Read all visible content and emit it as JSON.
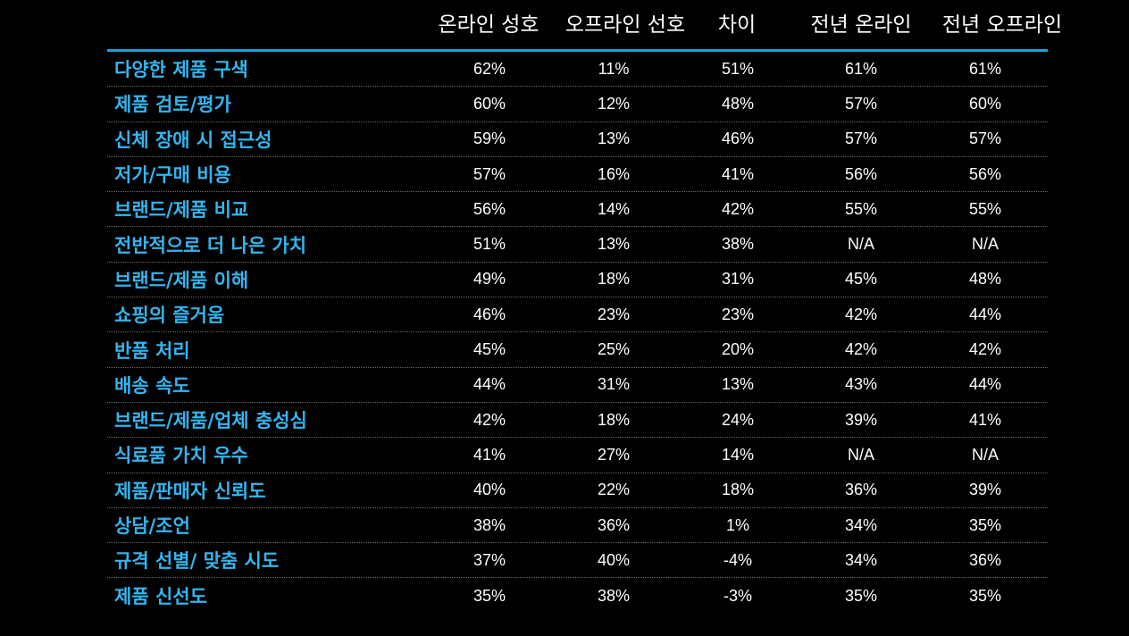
{
  "colors": {
    "background": "#000000",
    "accent_line": "#1ea3e0",
    "label_text": "#33b5ee",
    "value_text": "#ffffff",
    "header_text": "#ffffff"
  },
  "header": {
    "online_pref": "온라인 성호",
    "offline_pref": "오프라인 선호",
    "diff": "차이",
    "prev_online": "전년 온라인",
    "prev_offline": "전년 오프라인"
  },
  "rows": [
    {
      "label": "다양한 제품 구색",
      "online": "62%",
      "offline": "11%",
      "diff": "51%",
      "prev_online": "61%",
      "prev_offline": "61%"
    },
    {
      "label": "제품 검토/평가",
      "online": "60%",
      "offline": "12%",
      "diff": "48%",
      "prev_online": "57%",
      "prev_offline": "60%"
    },
    {
      "label": "신체 장애 시 접근성",
      "online": "59%",
      "offline": "13%",
      "diff": "46%",
      "prev_online": "57%",
      "prev_offline": "57%"
    },
    {
      "label": "저가/구매 비용",
      "online": "57%",
      "offline": "16%",
      "diff": "41%",
      "prev_online": "56%",
      "prev_offline": "56%"
    },
    {
      "label": "브랜드/제품 비교",
      "online": "56%",
      "offline": "14%",
      "diff": "42%",
      "prev_online": "55%",
      "prev_offline": "55%"
    },
    {
      "label": "전반적으로 더 나은 가치",
      "online": "51%",
      "offline": "13%",
      "diff": "38%",
      "prev_online": "N/A",
      "prev_offline": "N/A"
    },
    {
      "label": "브랜드/제품 이해",
      "online": "49%",
      "offline": "18%",
      "diff": "31%",
      "prev_online": "45%",
      "prev_offline": "48%"
    },
    {
      "label": "쇼핑의 즐거움",
      "online": "46%",
      "offline": "23%",
      "diff": "23%",
      "prev_online": "42%",
      "prev_offline": "44%"
    },
    {
      "label": "반품 처리",
      "online": "45%",
      "offline": "25%",
      "diff": "20%",
      "prev_online": "42%",
      "prev_offline": "42%"
    },
    {
      "label": "배송 속도",
      "online": "44%",
      "offline": "31%",
      "diff": "13%",
      "prev_online": "43%",
      "prev_offline": "44%"
    },
    {
      "label": "브랜드/제품/업체 충성심",
      "online": "42%",
      "offline": "18%",
      "diff": "24%",
      "prev_online": "39%",
      "prev_offline": "41%"
    },
    {
      "label": "식료품 가치 우수",
      "online": "41%",
      "offline": "27%",
      "diff": "14%",
      "prev_online": "N/A",
      "prev_offline": "N/A"
    },
    {
      "label": "제품/판매자 신뢰도",
      "online": "40%",
      "offline": "22%",
      "diff": "18%",
      "prev_online": "36%",
      "prev_offline": "39%"
    },
    {
      "label": "상담/조언",
      "online": "38%",
      "offline": "36%",
      "diff": "1%",
      "prev_online": "34%",
      "prev_offline": "35%"
    },
    {
      "label": "규격 선별/ 맞춤 시도",
      "online": "37%",
      "offline": "40%",
      "diff": "-4%",
      "prev_online": "34%",
      "prev_offline": "36%"
    },
    {
      "label": "제품 신선도",
      "online": "35%",
      "offline": "38%",
      "diff": "-3%",
      "prev_online": "35%",
      "prev_offline": "35%"
    }
  ]
}
